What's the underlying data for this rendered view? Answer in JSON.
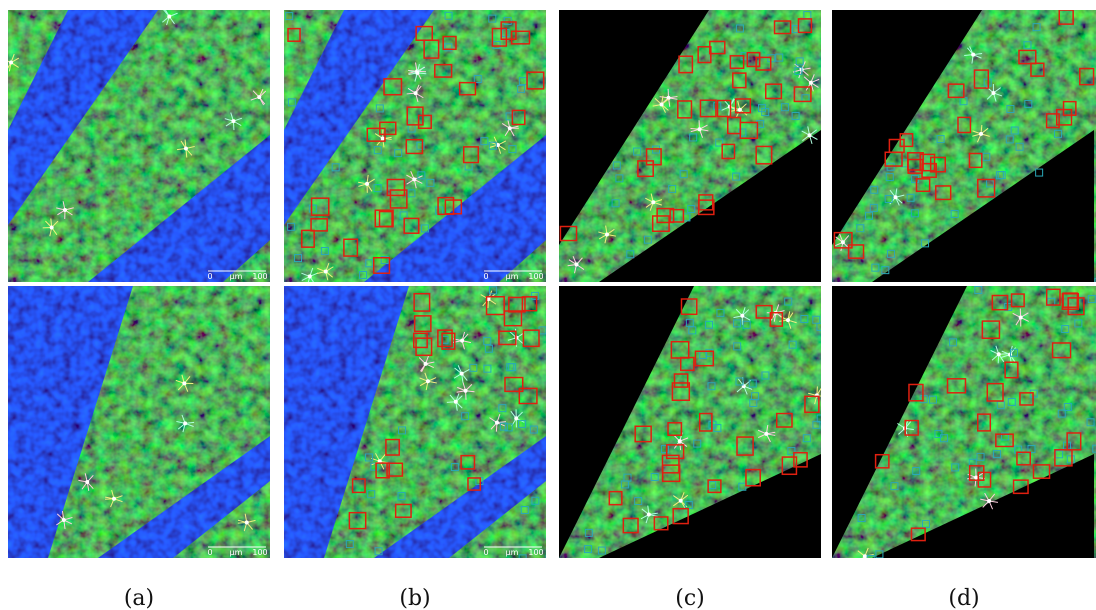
{
  "figure": {
    "labels": [
      "(a)",
      "(b)",
      "(c)",
      "(d)"
    ],
    "scale_bars": [
      {
        "start": "0",
        "unit": "μm",
        "end": "100"
      },
      {
        "start": "0",
        "unit": "μm",
        "end": "100"
      },
      {
        "start": "0",
        "unit": "μm",
        "end": "100"
      },
      {
        "start": "0",
        "unit": "μm",
        "end": "100"
      }
    ]
  }
}
